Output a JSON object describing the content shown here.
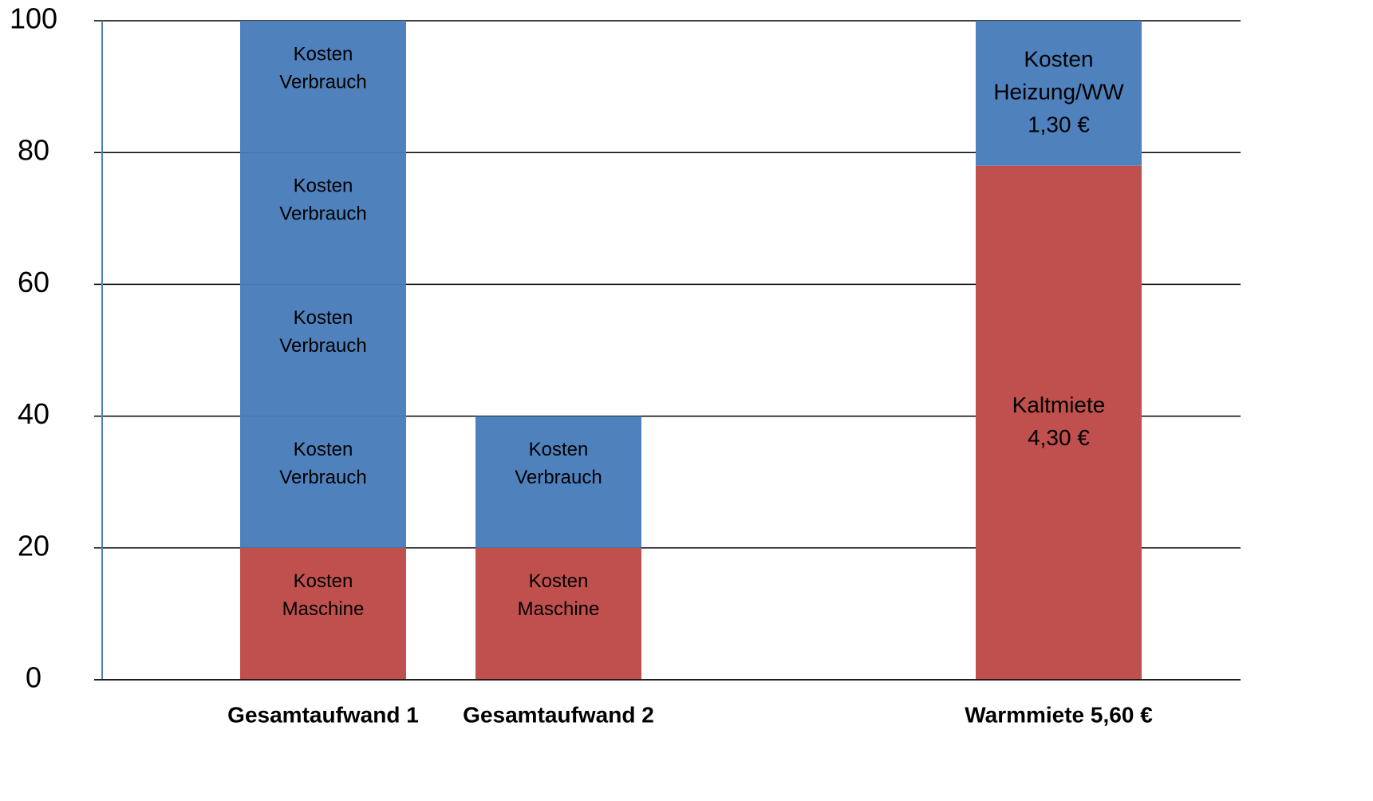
{
  "chart_data": {
    "type": "stacked_bar",
    "categories": [
      "Gesamtaufwand 1",
      "Gesamtaufwand 2",
      null,
      "Warmmiete 5,60 €"
    ],
    "ylim": [
      0,
      100
    ],
    "yticks": [
      0,
      20,
      40,
      60,
      80,
      100
    ],
    "grid": true,
    "series": [
      {
        "color": "#c0504d",
        "values": [
          20,
          20,
          null,
          78
        ],
        "segment_labels": [
          [
            "Kosten",
            "Maschine"
          ],
          [
            "Kosten",
            "Maschine"
          ],
          null,
          [
            "Kaltmiete",
            "4,30 €"
          ]
        ]
      },
      {
        "color": "#4f81bd",
        "values": [
          20,
          20,
          null,
          22
        ],
        "segment_labels": [
          [
            "Kosten",
            "Verbrauch"
          ],
          [
            "Kosten",
            "Verbrauch"
          ],
          null,
          [
            "Kosten",
            "Heizung/WW",
            "1,30 €"
          ]
        ]
      },
      {
        "color": "#4f81bd",
        "values": [
          20,
          null,
          null,
          null
        ],
        "segment_labels": [
          [
            "Kosten",
            "Verbrauch"
          ],
          null,
          null,
          null
        ]
      },
      {
        "color": "#4f81bd",
        "values": [
          20,
          null,
          null,
          null
        ],
        "segment_labels": [
          [
            "Kosten",
            "Verbrauch"
          ],
          null,
          null,
          null
        ]
      },
      {
        "color": "#4f81bd",
        "values": [
          20,
          null,
          null,
          null
        ],
        "segment_labels": [
          [
            "Kosten",
            "Verbrauch"
          ],
          null,
          null,
          null
        ]
      }
    ]
  }
}
